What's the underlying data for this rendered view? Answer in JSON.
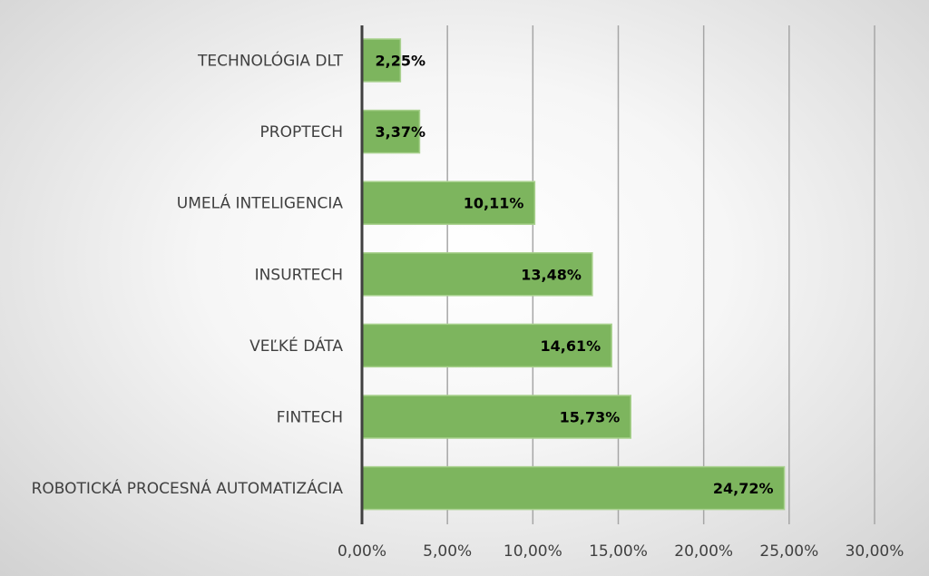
{
  "chart_data": {
    "type": "bar",
    "orientation": "horizontal",
    "title": "",
    "xlabel": "",
    "ylabel": "",
    "categories": [
      "TECHNOLÓGIA DLT",
      "PROPTECH",
      "UMELÁ INTELIGENCIA",
      "INSURTECH",
      "VEĽKÉ DÁTA",
      "FINTECH",
      "ROBOTICKÁ PROCESNÁ AUTOMATIZÁCIA"
    ],
    "values": [
      2.25,
      3.37,
      10.11,
      13.48,
      14.61,
      15.73,
      24.72
    ],
    "data_labels": [
      "2,25%",
      "3,37%",
      "10,11%",
      "13,48%",
      "14,61%",
      "15,73%",
      "24,72%"
    ],
    "xlim": [
      0,
      30
    ],
    "xticks": [
      0,
      5,
      10,
      15,
      20,
      25,
      30
    ],
    "xtick_labels": [
      "0,00%",
      "5,00%",
      "10,00%",
      "15,00%",
      "20,00%",
      "25,00%",
      "30,00%"
    ],
    "grid": true,
    "legend": "none",
    "bar_color": "#7db55e"
  }
}
